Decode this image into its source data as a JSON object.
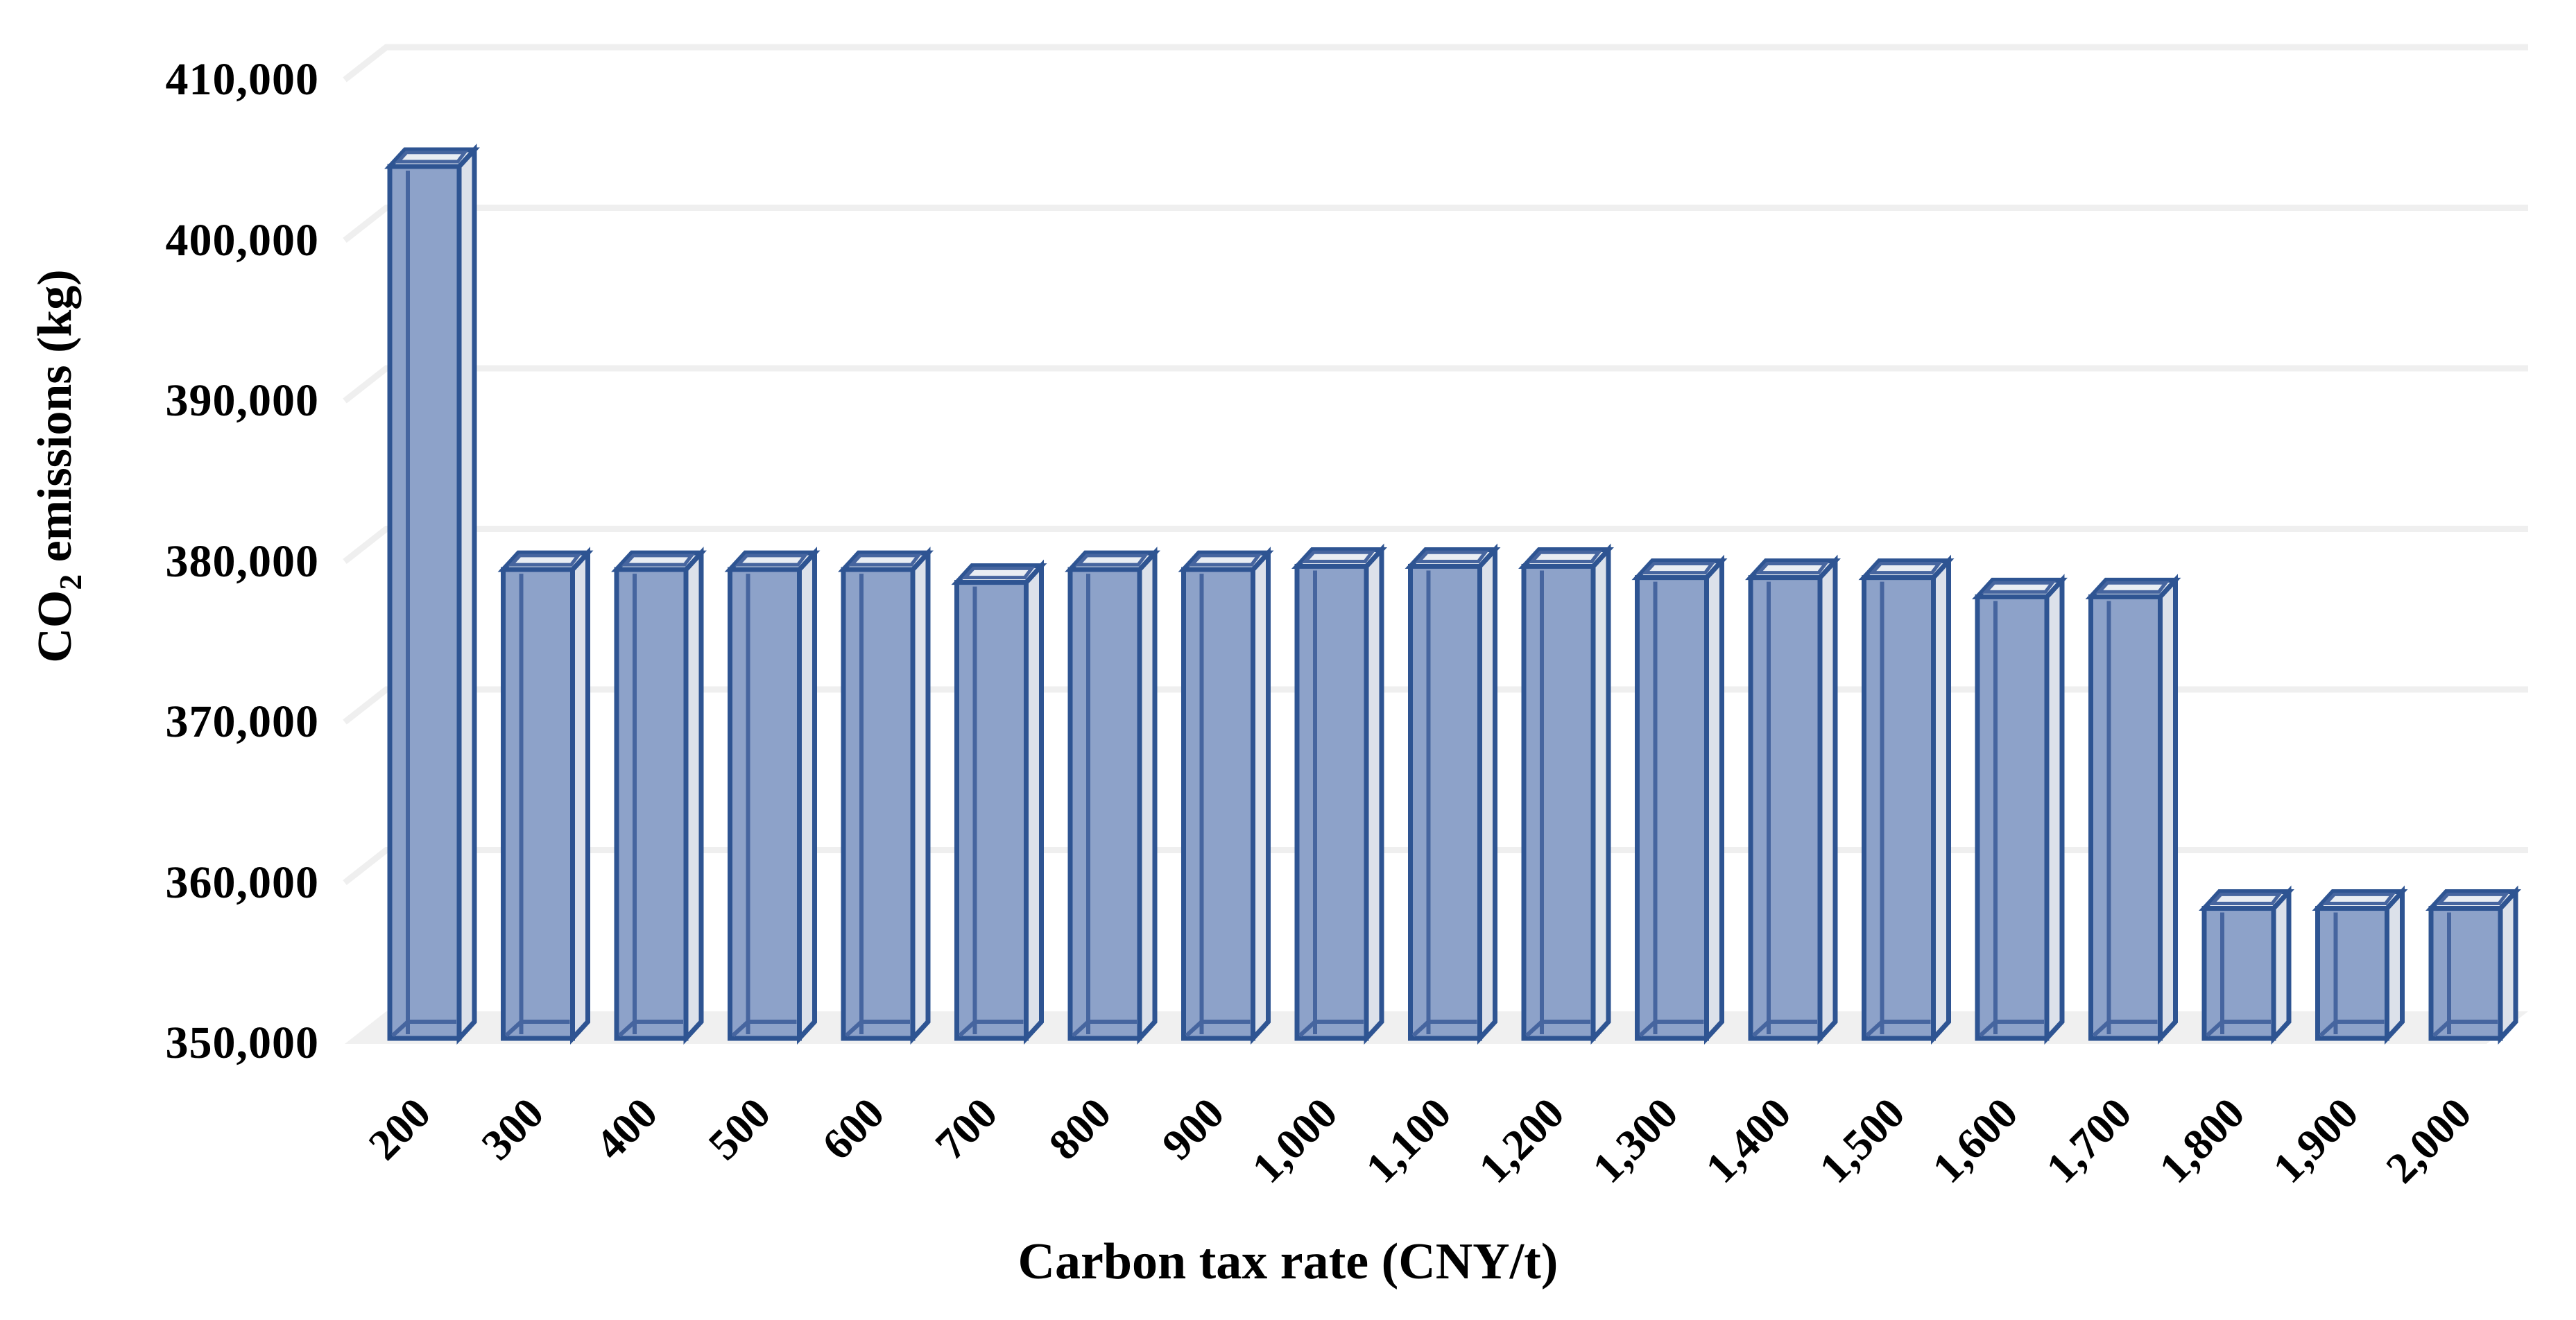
{
  "page": {
    "background_color": "#FFFFFF",
    "text_color": "#000000"
  },
  "x_axis": {
    "title": "Carbon tax rate (CNY/t)"
  },
  "y_axis": {
    "title_main": "CO",
    "title_subscript": "2",
    "title_rest": " emissions (kg)"
  },
  "chart_data": {
    "type": "bar",
    "style": "3d-column",
    "title": "",
    "xlabel": "Carbon tax rate (CNY/t)",
    "ylabel": "CO2 emissions (kg)",
    "categories": [
      "200",
      "300",
      "400",
      "500",
      "600",
      "700",
      "800",
      "900",
      "1,000",
      "1,100",
      "1,200",
      "1,300",
      "1,400",
      "1,500",
      "1,600",
      "1,700",
      "1,800",
      "1,900",
      "2,000"
    ],
    "values": [
      404600,
      379500,
      379500,
      379500,
      379500,
      378700,
      379500,
      379500,
      379700,
      379700,
      379700,
      379000,
      379000,
      379000,
      377800,
      377800,
      358400,
      358400,
      358400
    ],
    "value_note": "bar heights estimated from pixel positions against gridlines",
    "ylim": [
      350000,
      410000
    ],
    "ytick_interval": 10000,
    "ytick_labels": [
      "350,000",
      "360,000",
      "370,000",
      "380,000",
      "390,000",
      "400,000",
      "410,000"
    ],
    "ytick_values": [
      350000,
      360000,
      370000,
      380000,
      390000,
      400000,
      410000
    ],
    "grid": true,
    "legend": false,
    "colors": {
      "bar_front": "#8DA2C9",
      "bar_side": "#DCE1EA",
      "bar_top": "#E9EDF3",
      "bar_border": "#2E5492",
      "bar_inner_edge": "#46659F",
      "gridline": "#EFEFEF",
      "floor": "#F0F0F0",
      "background": "#FFFFFF"
    }
  }
}
